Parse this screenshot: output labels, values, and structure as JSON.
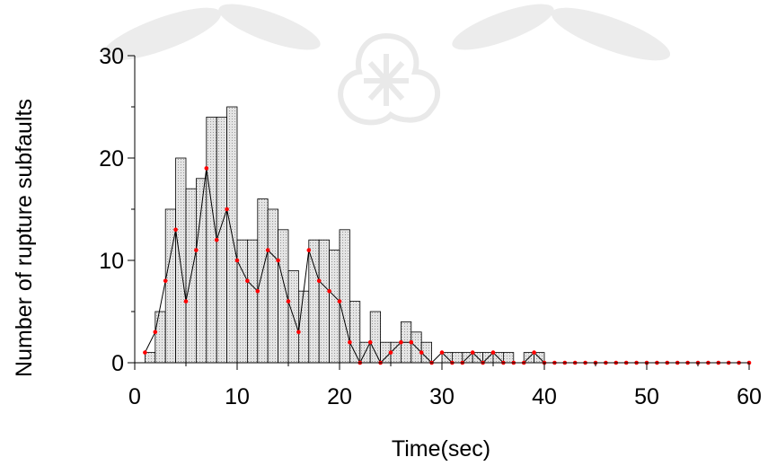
{
  "chart_data": {
    "type": "bar",
    "title": "",
    "xlabel": "Time(sec)",
    "ylabel": "Number of rupture subfaults",
    "xlim": [
      0,
      60
    ],
    "ylim": [
      0,
      30
    ],
    "xticks": [
      "0",
      "10",
      "20",
      "30",
      "40",
      "50",
      "60"
    ],
    "yticks": [
      "0",
      "10",
      "20",
      "30"
    ],
    "grid": false,
    "legend": "none",
    "colors": {
      "bar_fill": "#e4e4e4",
      "bar_stroke": "#000000",
      "line": "#000000",
      "marker": "#ff0000"
    },
    "histogram": {
      "bin_width": 1,
      "bins": [
        {
          "x": 1.5,
          "value": 1
        },
        {
          "x": 2.5,
          "value": 5
        },
        {
          "x": 3.5,
          "value": 15
        },
        {
          "x": 4.5,
          "value": 20
        },
        {
          "x": 5.5,
          "value": 17
        },
        {
          "x": 6.5,
          "value": 18
        },
        {
          "x": 7.5,
          "value": 24
        },
        {
          "x": 8.5,
          "value": 24
        },
        {
          "x": 9.5,
          "value": 25
        },
        {
          "x": 10.5,
          "value": 12
        },
        {
          "x": 11.5,
          "value": 12
        },
        {
          "x": 12.5,
          "value": 16
        },
        {
          "x": 13.5,
          "value": 15
        },
        {
          "x": 14.5,
          "value": 13
        },
        {
          "x": 15.5,
          "value": 9
        },
        {
          "x": 16.5,
          "value": 7
        },
        {
          "x": 17.5,
          "value": 12
        },
        {
          "x": 18.5,
          "value": 12
        },
        {
          "x": 19.5,
          "value": 11
        },
        {
          "x": 20.5,
          "value": 13
        },
        {
          "x": 21.5,
          "value": 6
        },
        {
          "x": 22.5,
          "value": 2
        },
        {
          "x": 23.5,
          "value": 5
        },
        {
          "x": 24.5,
          "value": 2
        },
        {
          "x": 25.5,
          "value": 2
        },
        {
          "x": 26.5,
          "value": 4
        },
        {
          "x": 27.5,
          "value": 3
        },
        {
          "x": 28.5,
          "value": 2
        },
        {
          "x": 29.5,
          "value": 0
        },
        {
          "x": 30.5,
          "value": 1
        },
        {
          "x": 31.5,
          "value": 1
        },
        {
          "x": 32.5,
          "value": 1
        },
        {
          "x": 33.5,
          "value": 1
        },
        {
          "x": 34.5,
          "value": 1
        },
        {
          "x": 35.5,
          "value": 1
        },
        {
          "x": 36.5,
          "value": 1
        },
        {
          "x": 37.5,
          "value": 0
        },
        {
          "x": 38.5,
          "value": 1
        },
        {
          "x": 39.5,
          "value": 1
        }
      ]
    },
    "series": [
      {
        "points": [
          [
            1,
            1
          ],
          [
            2,
            3
          ],
          [
            3,
            8
          ],
          [
            4,
            13
          ],
          [
            5,
            6
          ],
          [
            6,
            11
          ],
          [
            7,
            19
          ],
          [
            8,
            12
          ],
          [
            9,
            15
          ],
          [
            10,
            10
          ],
          [
            11,
            8
          ],
          [
            12,
            7
          ],
          [
            13,
            11
          ],
          [
            14,
            10
          ],
          [
            15,
            6
          ],
          [
            16,
            3
          ],
          [
            17,
            11
          ],
          [
            18,
            8
          ],
          [
            19,
            7
          ],
          [
            20,
            6
          ],
          [
            21,
            2
          ],
          [
            22,
            0
          ],
          [
            23,
            2
          ],
          [
            24,
            0
          ],
          [
            25,
            1
          ],
          [
            26,
            2
          ],
          [
            27,
            2
          ],
          [
            28,
            1
          ],
          [
            29,
            0
          ],
          [
            30,
            1
          ],
          [
            31,
            0
          ],
          [
            32,
            0
          ],
          [
            33,
            1
          ],
          [
            34,
            0
          ],
          [
            35,
            1
          ],
          [
            36,
            0
          ],
          [
            37,
            0
          ],
          [
            38,
            0
          ],
          [
            39,
            1
          ],
          [
            40,
            0
          ],
          [
            41,
            0
          ],
          [
            42,
            0
          ],
          [
            43,
            0
          ],
          [
            44,
            0
          ],
          [
            45,
            0
          ],
          [
            46,
            0
          ],
          [
            47,
            0
          ],
          [
            48,
            0
          ],
          [
            49,
            0
          ],
          [
            50,
            0
          ],
          [
            51,
            0
          ],
          [
            52,
            0
          ],
          [
            53,
            0
          ],
          [
            54,
            0
          ],
          [
            55,
            0
          ],
          [
            56,
            0
          ],
          [
            57,
            0
          ],
          [
            58,
            0
          ],
          [
            59,
            0
          ],
          [
            60,
            0
          ]
        ]
      }
    ]
  }
}
